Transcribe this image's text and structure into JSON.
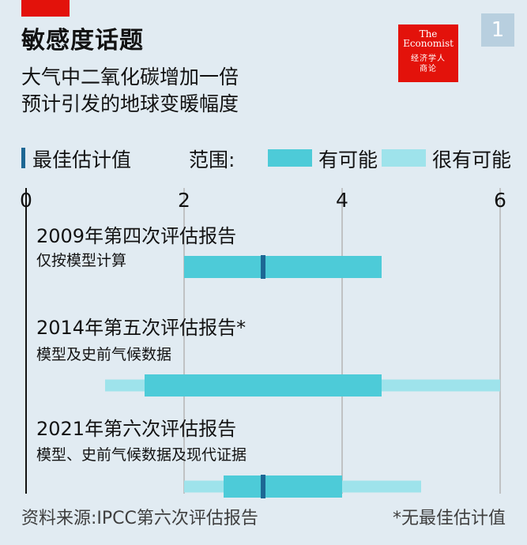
{
  "header": {
    "title": "敏感度话题",
    "subtitle_line1": "大气中二氧化碳增加一倍",
    "subtitle_line2": "预计引发的地球变暖幅度"
  },
  "logo": {
    "line1": "The",
    "line2": "Economist",
    "line3": "经济学人",
    "line4": "商论"
  },
  "page_number": "1",
  "legend": {
    "best_estimate": "最佳估计值",
    "range_label": "范围:",
    "likely": "有可能",
    "very_likely": "很有可能"
  },
  "colors": {
    "background": "#e1ebf2",
    "likely": "#4dcbd8",
    "very_likely": "#9ee3eb",
    "best_estimate": "#1d6794",
    "brand_red": "#e3120b"
  },
  "chart_data": {
    "type": "range",
    "x_ticks": [
      "0",
      "2",
      "4",
      "6"
    ],
    "xlim": [
      0,
      6
    ],
    "grid": true,
    "rows": [
      {
        "title": "2009年第四次评估报告",
        "subtitle": "仅按模型计算",
        "very_likely": null,
        "likely": [
          2.0,
          4.5
        ],
        "best": 3.0
      },
      {
        "title": "2014年第五次评估报告*",
        "subtitle": "模型及史前气候数据",
        "very_likely": [
          1.0,
          6.0
        ],
        "likely": [
          1.5,
          4.5
        ],
        "best": null
      },
      {
        "title": "2021年第六次评估报告",
        "subtitle": "模型、史前气候数据及现代证据",
        "very_likely": [
          2.0,
          5.0
        ],
        "likely": [
          2.5,
          4.0
        ],
        "best": 3.0
      }
    ]
  },
  "footer": {
    "source": "资料来源:IPCC第六次评估报告",
    "note": "*无最佳估计值"
  }
}
